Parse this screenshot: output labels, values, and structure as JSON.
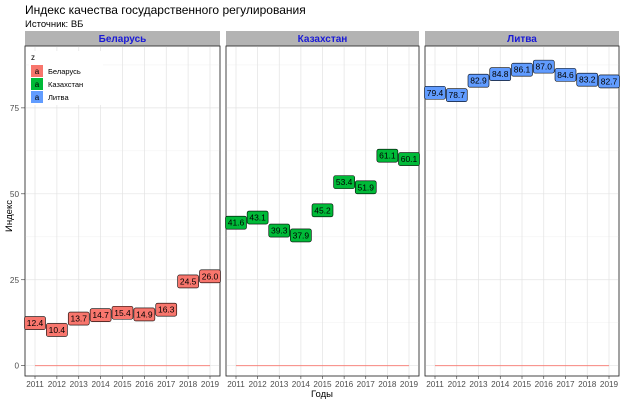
{
  "chart_data": {
    "type": "line",
    "title": "Индекс качества государственного регулирования",
    "subtitle": "Источник: ВБ",
    "xlabel": "Годы",
    "ylabel": "Индекс",
    "x": [
      2011,
      2012,
      2013,
      2014,
      2015,
      2016,
      2017,
      2018,
      2019
    ],
    "ylim": [
      -3,
      93
    ],
    "yticks": [
      0,
      25,
      50,
      75
    ],
    "grid": true,
    "legend": {
      "title": "z",
      "position": "top-left",
      "key_glyph": "a",
      "entries": [
        "Беларусь",
        "Казахстан",
        "Литва"
      ]
    },
    "facets": [
      {
        "name": "Беларусь",
        "color": "#F8766D",
        "values": [
          12.4,
          10.4,
          13.7,
          14.7,
          15.4,
          14.9,
          16.3,
          24.5,
          26.0
        ],
        "labels": [
          "12.4",
          "10.4",
          "13.7",
          "14.7",
          "15.4",
          "14.9",
          "16.3",
          "24.5",
          "26.0"
        ]
      },
      {
        "name": "Казахстан",
        "color": "#00BA38",
        "values": [
          41.6,
          43.1,
          39.3,
          37.9,
          45.2,
          53.4,
          51.9,
          61.1,
          60.1
        ],
        "labels": [
          "41.6",
          "43.1",
          "39.3",
          "37.9",
          "45.2",
          "53.4",
          "51.9",
          "61.1",
          "60.1"
        ]
      },
      {
        "name": "Литва",
        "color": "#619CFF",
        "values": [
          79.4,
          78.7,
          82.9,
          84.8,
          86.1,
          87.0,
          84.6,
          83.2,
          82.7
        ],
        "labels": [
          "79.4",
          "78.7",
          "82.9",
          "84.8",
          "86.1",
          "87.0",
          "84.6",
          "83.2",
          "82.7"
        ]
      }
    ],
    "baseline_color": "#F8766D"
  }
}
